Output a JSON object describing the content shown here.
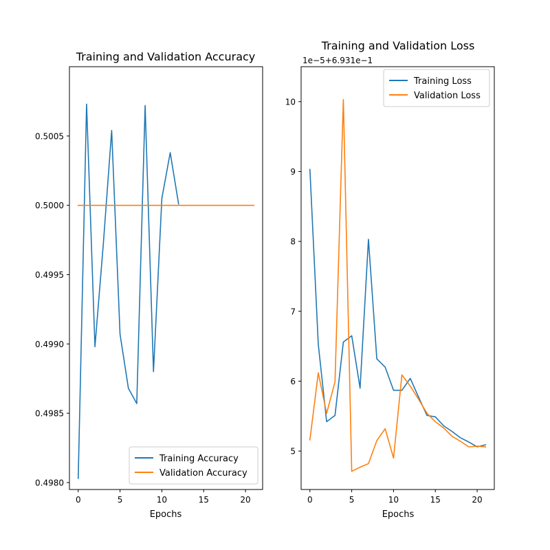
{
  "chart_data": [
    {
      "type": "line",
      "title": "Training and Validation Accuracy",
      "xlabel": "Epochs",
      "ylabel": "",
      "xlim": [
        -1.05,
        22.05
      ],
      "ylim": [
        0.49795,
        0.501
      ],
      "xticks": [
        0,
        5,
        10,
        15,
        20
      ],
      "xtick_labels": [
        "0",
        "5",
        "10",
        "15",
        "20"
      ],
      "yticks": [
        0.498,
        0.4985,
        0.499,
        0.4995,
        0.5,
        0.5005
      ],
      "ytick_labels": [
        "0.4980",
        "0.4985",
        "0.4990",
        "0.4995",
        "0.5000",
        "0.5005"
      ],
      "offset_text": "",
      "legend_position": "lower right",
      "grid": false,
      "series": [
        {
          "name": "Training Accuracy",
          "color": "#1f77b4",
          "x": [
            0,
            1,
            2,
            3,
            4,
            5,
            6,
            7,
            8,
            9,
            10,
            11,
            12
          ],
          "y": [
            0.49803,
            0.50073,
            0.49898,
            0.49972,
            0.50054,
            0.49907,
            0.49868,
            0.49857,
            0.50072,
            0.4988,
            0.50005,
            0.50038,
            0.50001
          ]
        },
        {
          "name": "Validation Accuracy",
          "color": "#ff7f0e",
          "x": [
            0,
            21
          ],
          "y": [
            0.5,
            0.5
          ]
        }
      ]
    },
    {
      "type": "line",
      "title": "Training and Validation Loss",
      "xlabel": "Epochs",
      "ylabel": "",
      "xlim": [
        -1.05,
        22.05
      ],
      "ylim": [
        4.45,
        10.5
      ],
      "xticks": [
        0,
        5,
        10,
        15,
        20
      ],
      "xtick_labels": [
        "0",
        "5",
        "10",
        "15",
        "20"
      ],
      "yticks": [
        5,
        6,
        7,
        8,
        9,
        10
      ],
      "ytick_labels": [
        "5",
        "6",
        "7",
        "8",
        "9",
        "10"
      ],
      "offset_text": "1e−5+6.931e−1",
      "legend_position": "upper right",
      "grid": false,
      "series": [
        {
          "name": "Training Loss",
          "color": "#1f77b4",
          "x": [
            0,
            1,
            2,
            3,
            4,
            5,
            6,
            7,
            8,
            9,
            10,
            11,
            12,
            13,
            14,
            15,
            16,
            17,
            18,
            19,
            20,
            21
          ],
          "y": [
            9.03,
            6.53,
            5.42,
            5.51,
            6.56,
            6.65,
            5.9,
            8.03,
            6.32,
            6.2,
            5.87,
            5.87,
            6.04,
            5.77,
            5.51,
            5.49,
            5.36,
            5.28,
            5.19,
            5.13,
            5.06,
            5.09
          ]
        },
        {
          "name": "Validation Loss",
          "color": "#ff7f0e",
          "x": [
            0,
            1,
            2,
            3,
            4,
            5,
            6,
            7,
            8,
            9,
            10,
            11,
            12,
            13,
            14,
            15,
            16,
            17,
            18,
            19,
            20,
            21
          ],
          "y": [
            5.16,
            6.12,
            5.54,
            5.99,
            10.03,
            4.71,
            4.77,
            4.82,
            5.15,
            5.32,
            4.9,
            6.09,
            5.93,
            5.74,
            5.54,
            5.42,
            5.33,
            5.21,
            5.14,
            5.06,
            5.07,
            5.06
          ]
        }
      ]
    }
  ]
}
